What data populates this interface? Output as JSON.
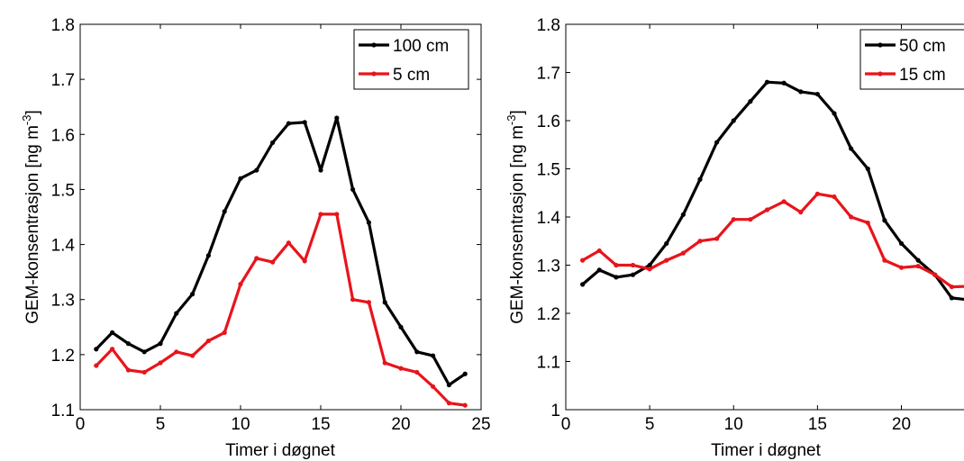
{
  "chart_data": [
    {
      "type": "line",
      "xlabel": "Timer i døgnet",
      "ylabel": "GEM-konsentrasjon [ng m",
      "ylabel_sup": "-3",
      "ylabel_close": "]",
      "xlim": [
        0,
        25
      ],
      "ylim": [
        1.1,
        1.8
      ],
      "xticks": [
        0,
        5,
        10,
        15,
        20,
        25
      ],
      "xtick_labels": [
        "0",
        "5",
        "10",
        "15",
        "20",
        "25"
      ],
      "yticks": [
        1.1,
        1.2,
        1.3,
        1.4,
        1.5,
        1.6,
        1.7,
        1.8
      ],
      "ytick_labels": [
        "1.1",
        "1.2",
        "1.3",
        "1.4",
        "1.5",
        "1.6",
        "1.7",
        "1.8"
      ],
      "grid": false,
      "legend_position": "top-right",
      "x": [
        1,
        2,
        3,
        4,
        5,
        6,
        7,
        8,
        9,
        10,
        11,
        12,
        13,
        14,
        15,
        16,
        17,
        18,
        19,
        20,
        21,
        22,
        23,
        24
      ],
      "series": [
        {
          "name": "100 cm",
          "color": "#000000",
          "values": [
            1.21,
            1.24,
            1.22,
            1.205,
            1.22,
            1.275,
            1.31,
            1.38,
            1.46,
            1.52,
            1.535,
            1.585,
            1.62,
            1.622,
            1.535,
            1.63,
            1.5,
            1.44,
            1.295,
            1.25,
            1.205,
            1.198,
            1.145,
            1.165
          ]
        },
        {
          "name": "5 cm",
          "color": "#e8141b",
          "values": [
            1.18,
            1.21,
            1.172,
            1.168,
            1.185,
            1.205,
            1.198,
            1.225,
            1.24,
            1.328,
            1.375,
            1.368,
            1.403,
            1.37,
            1.455,
            1.455,
            1.3,
            1.295,
            1.185,
            1.175,
            1.168,
            1.142,
            1.112,
            1.108
          ]
        }
      ]
    },
    {
      "type": "line",
      "xlabel": "Timer i døgnet",
      "ylabel": "GEM-konsentrasjon [ng m",
      "ylabel_sup": "-3",
      "ylabel_close": "]",
      "xlim": [
        0,
        24
      ],
      "ylim": [
        1.0,
        1.8
      ],
      "xticks": [
        0,
        5,
        10,
        15,
        20
      ],
      "xtick_labels": [
        "0",
        "5",
        "10",
        "15",
        "20"
      ],
      "yticks": [
        1.0,
        1.1,
        1.2,
        1.3,
        1.4,
        1.5,
        1.6,
        1.7,
        1.8
      ],
      "ytick_labels": [
        "1",
        "1.1",
        "1.2",
        "1.3",
        "1.4",
        "1.5",
        "1.6",
        "1.7",
        "1.8"
      ],
      "grid": false,
      "legend_position": "top-right",
      "x": [
        1,
        2,
        3,
        4,
        5,
        6,
        7,
        8,
        9,
        10,
        11,
        12,
        13,
        14,
        15,
        16,
        17,
        18,
        19,
        20,
        21,
        22,
        23,
        24
      ],
      "series": [
        {
          "name": "50 cm",
          "color": "#000000",
          "values": [
            1.26,
            1.29,
            1.275,
            1.28,
            1.3,
            1.345,
            1.405,
            1.478,
            1.555,
            1.6,
            1.64,
            1.68,
            1.678,
            1.66,
            1.655,
            1.615,
            1.542,
            1.5,
            1.393,
            1.345,
            1.31,
            1.28,
            1.232,
            1.228
          ]
        },
        {
          "name": "15 cm",
          "color": "#e8141b",
          "values": [
            1.31,
            1.33,
            1.3,
            1.3,
            1.292,
            1.31,
            1.325,
            1.35,
            1.355,
            1.395,
            1.395,
            1.415,
            1.432,
            1.41,
            1.448,
            1.442,
            1.4,
            1.388,
            1.31,
            1.295,
            1.298,
            1.28,
            1.255,
            1.256
          ]
        }
      ]
    }
  ]
}
